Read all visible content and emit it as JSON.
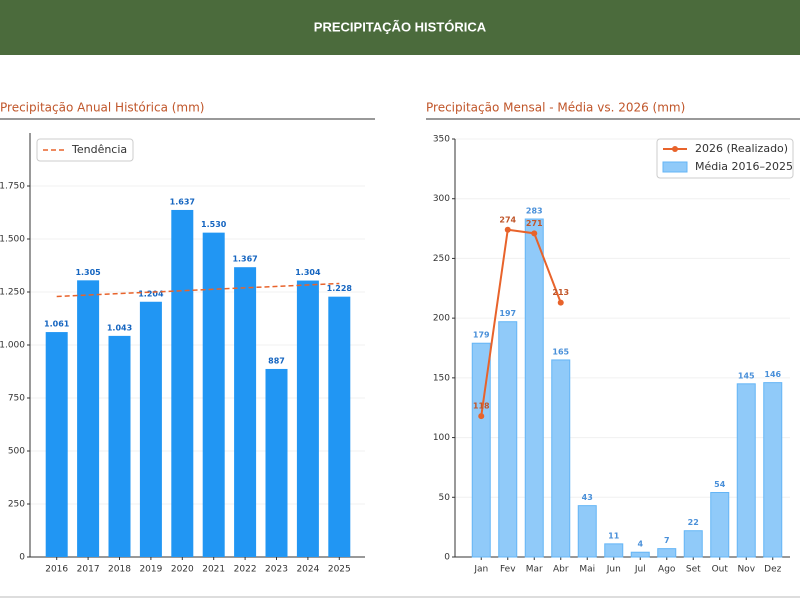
{
  "header": {
    "title": "PRECIPITAÇÃO HISTÓRICA"
  },
  "chart_data": [
    {
      "type": "bar",
      "title": "Precipitação Anual Histórica (mm)",
      "categories": [
        "2016",
        "2017",
        "2018",
        "2019",
        "2020",
        "2021",
        "2022",
        "2023",
        "2024",
        "2025"
      ],
      "values": [
        1061,
        1305,
        1043,
        1204,
        1637,
        1530,
        1367,
        887,
        1304,
        1228
      ],
      "value_labels": [
        "1.061",
        "1.305",
        "1.043",
        "1.204",
        "1.637",
        "1.530",
        "1.367",
        "887",
        "1.304",
        "1.228"
      ],
      "color": "#2196f3",
      "trend": {
        "name": "Tendência",
        "values": [
          1229,
          1290
        ],
        "color": "#e8632b"
      },
      "ylim": [
        0,
        2000
      ],
      "yticks": [
        0,
        250,
        500,
        750,
        {
          "value": 1000,
          "label": "1.000"
        },
        {
          "value": 1250,
          "label": "1.250"
        },
        {
          "value": 1500,
          "label": "1.500"
        },
        {
          "value": 1750,
          "label": "1.750"
        }
      ],
      "grid": true,
      "legend": "upper left"
    },
    {
      "type": "bar_line",
      "title": "Precipitação Mensal - Média vs. 2026 (mm)",
      "categories": [
        "Jan",
        "Fev",
        "Mar",
        "Abr",
        "Mai",
        "Jun",
        "Jul",
        "Ago",
        "Set",
        "Out",
        "Nov",
        "Dez"
      ],
      "series": [
        {
          "name": "2026 (Realizado)",
          "kind": "line",
          "color": "#e8632b",
          "values": [
            118,
            274,
            271,
            213,
            null,
            null,
            null,
            null,
            null,
            null,
            null,
            null
          ]
        },
        {
          "name": "Média 2016–2025",
          "kind": "bar",
          "color": "#90caf9",
          "values": [
            179,
            197,
            283,
            165,
            43,
            11,
            4,
            7,
            22,
            54,
            145,
            146
          ]
        }
      ],
      "ylim": [
        0,
        350
      ],
      "yticks": [
        0,
        50,
        100,
        150,
        200,
        250,
        300,
        350
      ],
      "grid": true,
      "legend": "upper right"
    }
  ]
}
